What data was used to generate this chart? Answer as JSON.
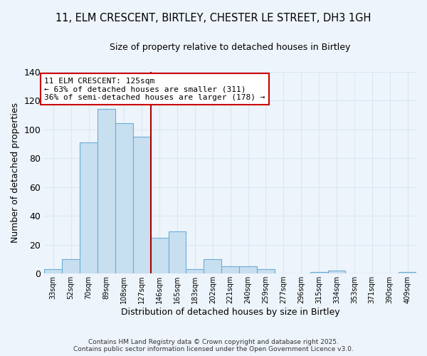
{
  "title1": "11, ELM CRESCENT, BIRTLEY, CHESTER LE STREET, DH3 1GH",
  "title2": "Size of property relative to detached houses in Birtley",
  "xlabel": "Distribution of detached houses by size in Birtley",
  "ylabel": "Number of detached properties",
  "bar_color": "#c8dff0",
  "bar_edge_color": "#6baed6",
  "background_color": "#eef4fb",
  "grid_color": "#d8e8f5",
  "categories": [
    "33sqm",
    "52sqm",
    "70sqm",
    "89sqm",
    "108sqm",
    "127sqm",
    "146sqm",
    "165sqm",
    "183sqm",
    "202sqm",
    "221sqm",
    "240sqm",
    "259sqm",
    "277sqm",
    "296sqm",
    "315sqm",
    "334sqm",
    "353sqm",
    "371sqm",
    "390sqm",
    "409sqm"
  ],
  "values": [
    3,
    10,
    91,
    114,
    104,
    95,
    25,
    29,
    3,
    10,
    5,
    5,
    3,
    0,
    0,
    1,
    2,
    0,
    0,
    0,
    1
  ],
  "ylim": [
    0,
    140
  ],
  "yticks": [
    0,
    20,
    40,
    60,
    80,
    100,
    120,
    140
  ],
  "vline_index": 5,
  "vline_color": "#aa0000",
  "annotation_title": "11 ELM CRESCENT: 125sqm",
  "annotation_line1": "← 63% of detached houses are smaller (311)",
  "annotation_line2": "36% of semi-detached houses are larger (178) →",
  "annotation_box_color": "#ffffff",
  "annotation_box_edge": "#cc0000",
  "footer1": "Contains HM Land Registry data © Crown copyright and database right 2025.",
  "footer2": "Contains public sector information licensed under the Open Government Licence v3.0."
}
